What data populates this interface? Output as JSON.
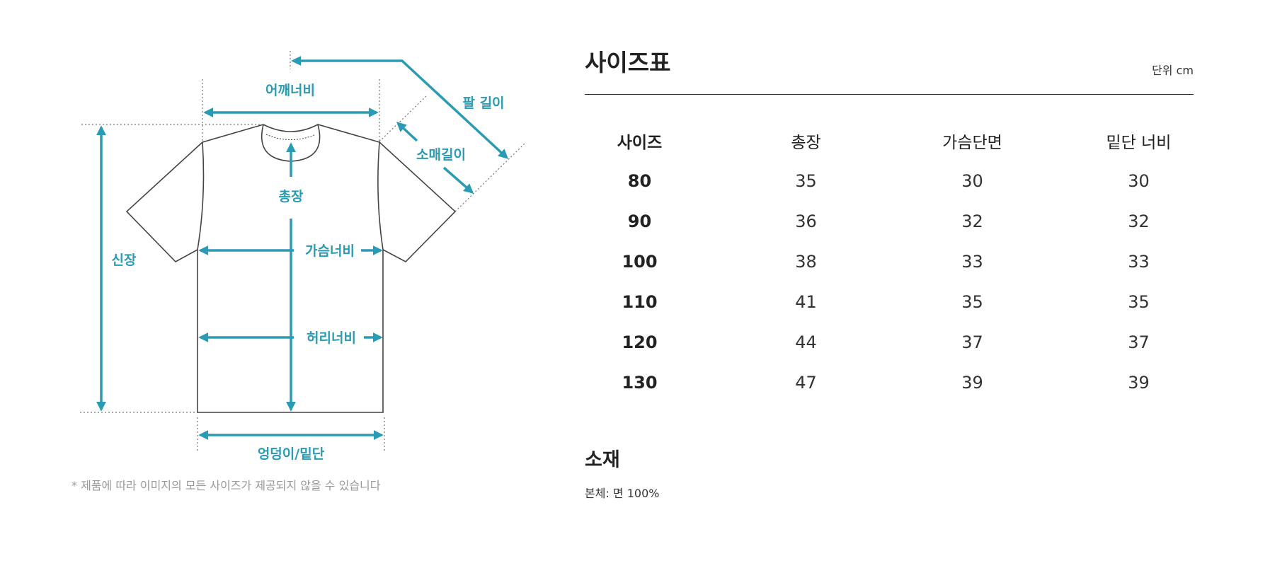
{
  "diagram": {
    "labels": {
      "shoulder_width": "어깨너비",
      "arm_length": "팔 길이",
      "sleeve_length": "소매길이",
      "total_length": "총장",
      "height": "신장",
      "chest_width": "가슴너비",
      "waist_width": "허리너비",
      "hem_width": "엉덩이/밑단"
    },
    "accent_color": "#2a9bb5",
    "footnote": "* 제품에 따라 이미지의 모든 사이즈가 제공되지 않을 수 있습니다"
  },
  "size_chart": {
    "title": "사이즈표",
    "unit": "단위 cm",
    "headers": [
      "사이즈",
      "총장",
      "가슴단면",
      "밑단 너비"
    ],
    "rows": [
      [
        "80",
        "35",
        "30",
        "30"
      ],
      [
        "90",
        "36",
        "32",
        "32"
      ],
      [
        "100",
        "38",
        "33",
        "33"
      ],
      [
        "110",
        "41",
        "35",
        "35"
      ],
      [
        "120",
        "44",
        "37",
        "37"
      ],
      [
        "130",
        "47",
        "39",
        "39"
      ]
    ]
  },
  "material": {
    "title": "소재",
    "text": "본체: 면 100%"
  }
}
